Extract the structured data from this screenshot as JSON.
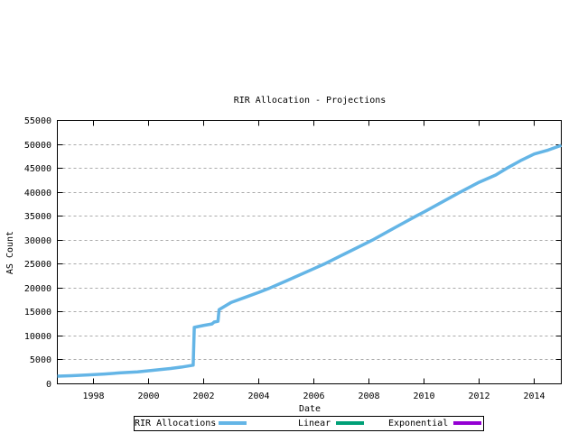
{
  "chart_data": {
    "type": "line",
    "title": "RIR Allocation - Projections",
    "xlabel": "Date",
    "ylabel": "AS Count",
    "x_range": [
      1996.69,
      2014.98
    ],
    "y_range": [
      0,
      55000
    ],
    "x_ticks": [
      1998,
      2000,
      2002,
      2004,
      2006,
      2008,
      2010,
      2012,
      2014
    ],
    "y_ticks": [
      0,
      5000,
      10000,
      15000,
      20000,
      25000,
      30000,
      35000,
      40000,
      45000,
      50000,
      55000
    ],
    "grid": "horizontal-dashed",
    "grid_color": "#AAAAAA",
    "legend_position": "bottom-center-boxed",
    "series": [
      {
        "name": "RIR Allocations",
        "color": "#64B5E6",
        "visible_in_plot": true,
        "points": [
          [
            1996.69,
            1600
          ],
          [
            1997.2,
            1700
          ],
          [
            1997.8,
            1850
          ],
          [
            1998.4,
            2050
          ],
          [
            1999.0,
            2300
          ],
          [
            1999.6,
            2500
          ],
          [
            2000.2,
            2850
          ],
          [
            2000.8,
            3200
          ],
          [
            2001.2,
            3500
          ],
          [
            2001.62,
            3900
          ],
          [
            2001.66,
            11800
          ],
          [
            2002.0,
            12200
          ],
          [
            2002.3,
            12500
          ],
          [
            2002.38,
            12900
          ],
          [
            2002.52,
            13050
          ],
          [
            2002.56,
            15500
          ],
          [
            2003.0,
            17000
          ],
          [
            2003.5,
            18050
          ],
          [
            2004.0,
            19100
          ],
          [
            2004.4,
            20000
          ],
          [
            2005.0,
            21500
          ],
          [
            2006.0,
            24050
          ],
          [
            2006.37,
            25000
          ],
          [
            2007.0,
            26800
          ],
          [
            2008.0,
            29650
          ],
          [
            2008.12,
            30000
          ],
          [
            2009.0,
            32800
          ],
          [
            2009.7,
            35000
          ],
          [
            2010.0,
            35900
          ],
          [
            2011.0,
            39050
          ],
          [
            2011.3,
            40000
          ],
          [
            2012.0,
            42100
          ],
          [
            2012.6,
            43600
          ],
          [
            2013.0,
            45000
          ],
          [
            2013.5,
            46600
          ],
          [
            2014.0,
            48000
          ],
          [
            2014.5,
            48800
          ],
          [
            2014.98,
            49800
          ]
        ]
      },
      {
        "name": "Linear",
        "color": "#00A077",
        "visible_in_plot": false,
        "points": []
      },
      {
        "name": "Exponential",
        "color": "#9400D3",
        "visible_in_plot": false,
        "points": []
      }
    ]
  },
  "legend": {
    "entries": [
      {
        "label": "RIR Allocations",
        "color": "#64B5E6"
      },
      {
        "label": "Linear",
        "color": "#00A077"
      },
      {
        "label": "Exponential",
        "color": "#9400D3"
      }
    ]
  },
  "colors": {
    "background": "#FFFFFF",
    "text": "#000000",
    "border": "#000000",
    "grid": "#AAAAAA"
  }
}
